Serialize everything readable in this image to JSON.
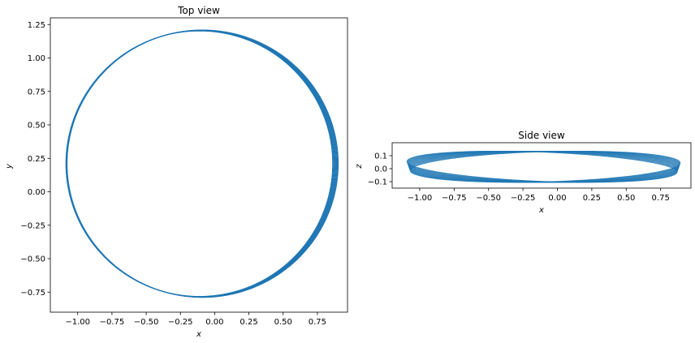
{
  "chart_data": [
    {
      "type": "line",
      "title": "Top view",
      "xlabel": "x",
      "ylabel": "y",
      "xlim": [
        -1.2,
        0.97
      ],
      "ylim": [
        -0.9,
        1.3
      ],
      "xticks": [
        "−1.00",
        "−0.75",
        "−0.50",
        "−0.25",
        "0.00",
        "0.25",
        "0.50",
        "0.75"
      ],
      "xtick_values": [
        -1.0,
        -0.75,
        -0.5,
        -0.25,
        0.0,
        0.25,
        0.5,
        0.75
      ],
      "yticks": [
        "−0.75",
        "−0.50",
        "−0.25",
        "0.00",
        "0.25",
        "0.50",
        "0.75",
        "1.00",
        "1.25"
      ],
      "ytick_values": [
        -0.75,
        -0.5,
        -0.25,
        0.0,
        0.25,
        0.5,
        0.75,
        1.0,
        1.25
      ],
      "color": "#1f77b4",
      "orbit": {
        "center_x": -0.1,
        "center_y": 0.21,
        "semi_axis_x": 0.98,
        "semi_axis_y": 0.995,
        "loops": 8,
        "center_drift_x": [
          -0.012,
          0.012
        ],
        "radius_spread": [
          -0.006,
          0.01
        ]
      }
    },
    {
      "type": "line",
      "title": "Side view",
      "xlabel": "x",
      "ylabel": "z",
      "xlim": [
        -1.2,
        0.97
      ],
      "ylim": [
        -0.15,
        0.2
      ],
      "xticks": [
        "−1.00",
        "−0.75",
        "−0.50",
        "−0.25",
        "0.00",
        "0.25",
        "0.50",
        "0.75"
      ],
      "xtick_values": [
        -1.0,
        -0.75,
        -0.5,
        -0.25,
        0.0,
        0.25,
        0.5,
        0.75
      ],
      "yticks": [
        "−0.1",
        "0.0",
        "0.1"
      ],
      "ytick_values": [
        -0.1,
        0.0,
        0.1
      ],
      "color": "#1f77b4",
      "orbit": {
        "center_x": -0.1,
        "semi_axis_x": 0.98,
        "loops": 14,
        "z_amplitude": 0.12,
        "z_phase_range": [
          0.0,
          0.6
        ],
        "center_drift_x": [
          -0.012,
          0.012
        ]
      }
    }
  ]
}
